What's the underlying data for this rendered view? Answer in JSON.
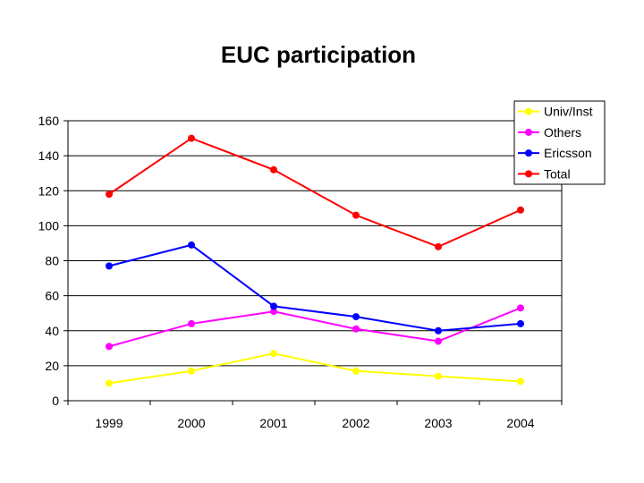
{
  "chart_data": {
    "type": "line",
    "title": "EUC participation",
    "xlabel": "",
    "ylabel": "",
    "categories": [
      "1999",
      "2000",
      "2001",
      "2002",
      "2003",
      "2004"
    ],
    "ylim": [
      0,
      160
    ],
    "yticks": [
      0,
      20,
      40,
      60,
      80,
      100,
      120,
      140,
      160
    ],
    "grid": true,
    "legend_position": "top-right",
    "series": [
      {
        "name": "Univ/Inst",
        "color": "#ffff00",
        "values": [
          10,
          17,
          27,
          17,
          14,
          11
        ]
      },
      {
        "name": "Others",
        "color": "#ff00ff",
        "values": [
          31,
          44,
          51,
          41,
          34,
          53
        ]
      },
      {
        "name": "Ericsson",
        "color": "#0000ff",
        "values": [
          77,
          89,
          54,
          48,
          40,
          44
        ]
      },
      {
        "name": "Total",
        "color": "#ff0000",
        "values": [
          118,
          150,
          132,
          106,
          88,
          109
        ]
      }
    ]
  }
}
